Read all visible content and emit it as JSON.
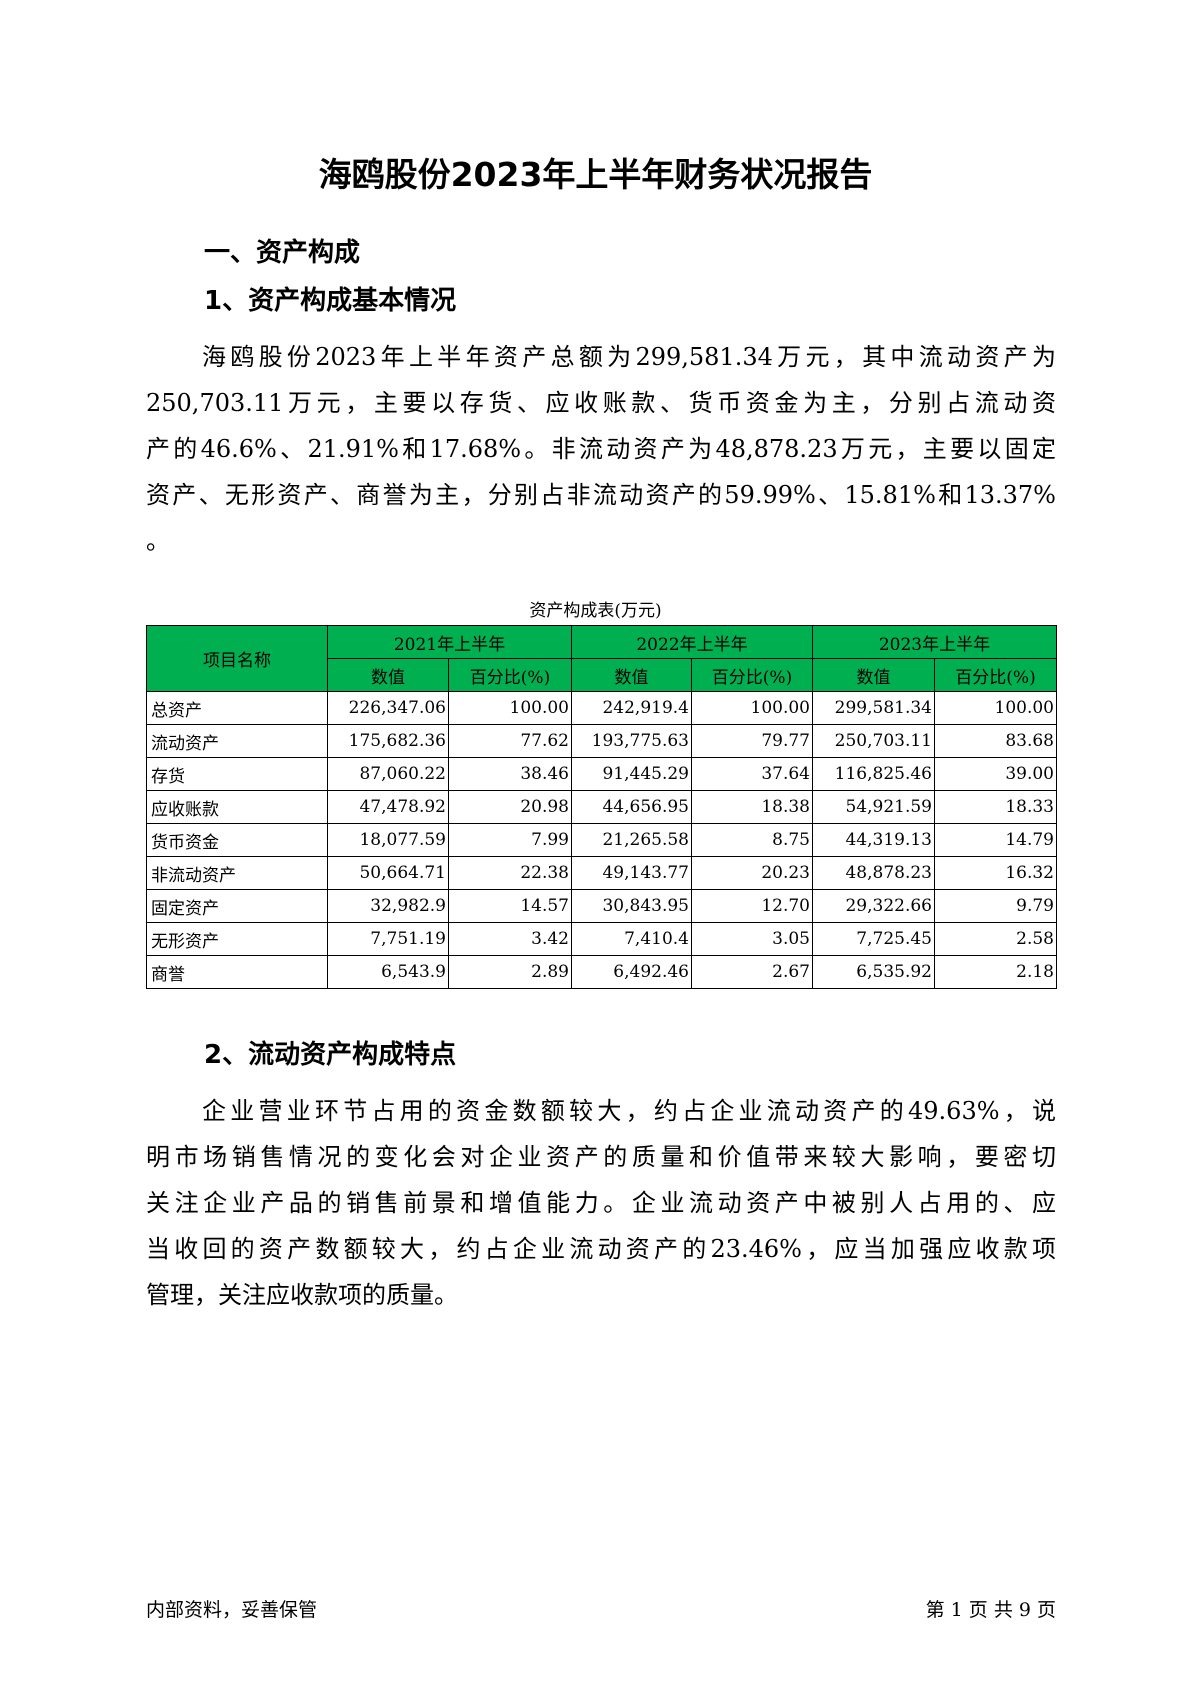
{
  "title": "海鸥股份2023年上半年财务状况报告",
  "section1": {
    "heading": "一、资产构成",
    "sub1": "1、资产构成基本情况",
    "para_lines": [
      "海鸥股份2023年上半年资产总额为299,581.34万元，其中流动资产为",
      "250,703.11万元，主要以存货、应收账款、货币资金为主，分别占流动资",
      "产的46.6%、21.91%和17.68%。非流动资产为48,878.23万元，主要以固定",
      "资产、无形资产、商誉为主，分别占非流动资产的59.99%、15.81%和13.37%",
      "。"
    ]
  },
  "table": {
    "caption": "资产构成表(万元)",
    "name_header": "项目名称",
    "years": [
      "2021年上半年",
      "2022年上半年",
      "2023年上半年"
    ],
    "value_header": "数值",
    "pct_header": "百分比(%)",
    "rows": [
      {
        "name": "总资产",
        "cells": [
          "226,347.06",
          "100.00",
          "242,919.4",
          "100.00",
          "299,581.34",
          "100.00"
        ]
      },
      {
        "name": "流动资产",
        "cells": [
          "175,682.36",
          "77.62",
          "193,775.63",
          "79.77",
          "250,703.11",
          "83.68"
        ]
      },
      {
        "name": "存货",
        "cells": [
          "87,060.22",
          "38.46",
          "91,445.29",
          "37.64",
          "116,825.46",
          "39.00"
        ]
      },
      {
        "name": "应收账款",
        "cells": [
          "47,478.92",
          "20.98",
          "44,656.95",
          "18.38",
          "54,921.59",
          "18.33"
        ]
      },
      {
        "name": "货币资金",
        "cells": [
          "18,077.59",
          "7.99",
          "21,265.58",
          "8.75",
          "44,319.13",
          "14.79"
        ]
      },
      {
        "name": "非流动资产",
        "cells": [
          "50,664.71",
          "22.38",
          "49,143.77",
          "20.23",
          "48,878.23",
          "16.32"
        ]
      },
      {
        "name": "固定资产",
        "cells": [
          "32,982.9",
          "14.57",
          "30,843.95",
          "12.70",
          "29,322.66",
          "9.79"
        ]
      },
      {
        "name": "无形资产",
        "cells": [
          "7,751.19",
          "3.42",
          "7,410.4",
          "3.05",
          "7,725.45",
          "2.58"
        ]
      },
      {
        "name": "商誉",
        "cells": [
          "6,543.9",
          "2.89",
          "6,492.46",
          "2.67",
          "6,535.92",
          "2.18"
        ]
      }
    ],
    "header_color": "#00b050"
  },
  "section2": {
    "heading": "2、流动资产构成特点",
    "para_lines": [
      "企业营业环节占用的资金数额较大，约占企业流动资产的49.63%，说",
      "明市场销售情况的变化会对企业资产的质量和价值带来较大影响，要密切",
      "关注企业产品的销售前景和增值能力。企业流动资产中被别人占用的、应",
      "当收回的资产数额较大，约占企业流动资产的23.46%，应当加强应收款项",
      "管理，关注应收款项的质量。"
    ]
  },
  "footer": {
    "left": "内部资料，妥善保管",
    "right": "第 1 页  共 9 页"
  }
}
